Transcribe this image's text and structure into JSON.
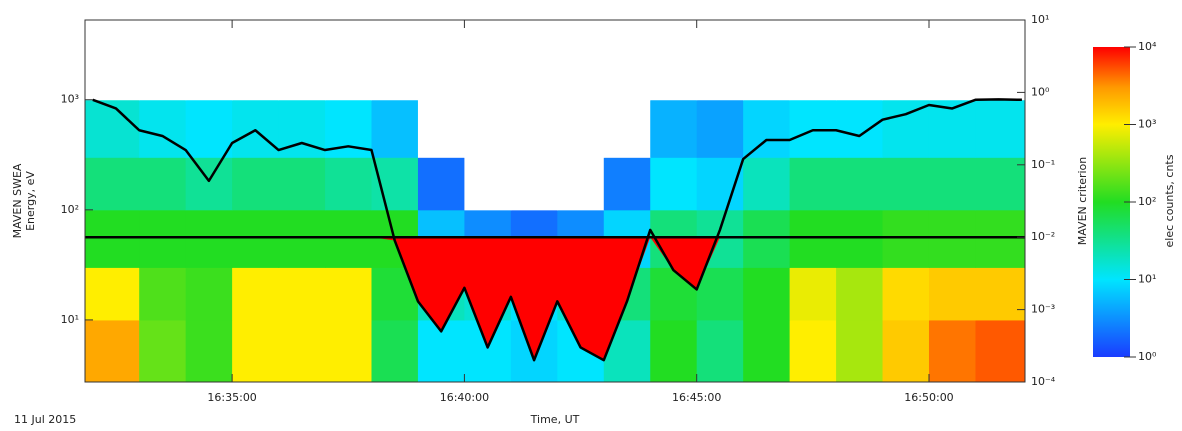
{
  "chart_data": {
    "type": "heatmap",
    "date": "11 Jul 2015",
    "xlabel": "Time, UT",
    "ylabel": [
      "MAVEN SWEA",
      "Energy, eV"
    ],
    "xlim": [
      "16:31:50",
      "16:52:04"
    ],
    "xticks": [
      "16:35:00",
      "16:40:00",
      "16:45:00",
      "16:50:00"
    ],
    "ylim": [
      2.73,
      5300
    ],
    "ylog": true,
    "yticks": [
      {
        "value": 10,
        "label": "10¹"
      },
      {
        "value": 100,
        "label": "10²"
      },
      {
        "value": 1000,
        "label": "10³"
      }
    ],
    "x_edges": [
      "16:31:50",
      "16:33:00",
      "16:34:00",
      "16:35:00",
      "16:36:00",
      "16:37:00",
      "16:38:00",
      "16:39:00",
      "16:40:00",
      "16:41:00",
      "16:42:00",
      "16:43:00",
      "16:44:00",
      "16:45:00",
      "16:46:00",
      "16:47:00",
      "16:48:00",
      "16:49:00",
      "16:50:00",
      "16:51:00",
      "16:52:04"
    ],
    "y_edges": [
      2.73,
      10,
      30,
      100,
      300,
      1000,
      5300
    ],
    "z": [
      [
        2500,
        200,
        130,
        1000,
        1000,
        1000,
        60,
        10,
        10,
        8,
        10,
        20,
        100,
        40,
        100,
        1000,
        400,
        1600,
        4000,
        5000
      ],
      [
        1000,
        160,
        130,
        1000,
        1000,
        1000,
        80,
        20,
        16,
        10,
        16,
        40,
        80,
        60,
        100,
        800,
        400,
        1300,
        1600,
        1600
      ],
      [
        100,
        100,
        100,
        100,
        100,
        100,
        100,
        6,
        3,
        2,
        3,
        8,
        40,
        30,
        60,
        100,
        100,
        120,
        120,
        120
      ],
      [
        40,
        40,
        30,
        40,
        40,
        30,
        25,
        2,
        0,
        0,
        0,
        2.5,
        10,
        8,
        20,
        40,
        40,
        40,
        40,
        40
      ],
      [
        16,
        12,
        10,
        12,
        12,
        10,
        6,
        0,
        0,
        0,
        0,
        0,
        5,
        4,
        8,
        10,
        10,
        12,
        12,
        12
      ],
      [
        0,
        0,
        0,
        0,
        0,
        0,
        0,
        0,
        0,
        0,
        0,
        0,
        0,
        0,
        0,
        0,
        0,
        0,
        0,
        0
      ]
    ],
    "colorbar": {
      "label": "elec counts, cnts",
      "lim": [
        1,
        10000
      ],
      "log": true,
      "ticks": [
        {
          "value": 1,
          "label": "10⁰"
        },
        {
          "value": 10,
          "label": "10¹"
        },
        {
          "value": 100,
          "label": "10²"
        },
        {
          "value": 1000,
          "label": "10³"
        },
        {
          "value": 10000,
          "label": "10⁴"
        }
      ]
    },
    "y2label": "MAVEN criterion",
    "y2lim": [
      0.0001,
      10
    ],
    "y2log": true,
    "y2ticks": [
      {
        "value": 0.0001,
        "label": "10⁻⁴"
      },
      {
        "value": 0.001,
        "label": "10⁻³"
      },
      {
        "value": 0.01,
        "label": "10⁻²"
      },
      {
        "value": 0.1,
        "label": "10⁻¹"
      },
      {
        "value": 1,
        "label": "10⁰"
      },
      {
        "value": 10,
        "label": "10¹"
      }
    ],
    "criterion": {
      "color": "#000000",
      "fill": "#ff0000",
      "threshold": 0.01,
      "x": [
        "16:32:00",
        "16:32:30",
        "16:33:00",
        "16:33:30",
        "16:34:00",
        "16:34:30",
        "16:35:00",
        "16:35:30",
        "16:36:00",
        "16:36:30",
        "16:37:00",
        "16:37:30",
        "16:38:00",
        "16:38:30",
        "16:39:00",
        "16:39:30",
        "16:40:00",
        "16:40:30",
        "16:41:00",
        "16:41:30",
        "16:42:00",
        "16:42:30",
        "16:43:00",
        "16:43:30",
        "16:44:00",
        "16:44:30",
        "16:45:00",
        "16:45:30",
        "16:46:00",
        "16:46:30",
        "16:47:00",
        "16:47:30",
        "16:48:00",
        "16:48:30",
        "16:49:00",
        "16:49:30",
        "16:50:00",
        "16:50:30",
        "16:51:00",
        "16:51:30",
        "16:52:00"
      ],
      "values": [
        0.79,
        0.6,
        0.3,
        0.25,
        0.16,
        0.06,
        0.2,
        0.3,
        0.16,
        0.2,
        0.16,
        0.18,
        0.16,
        0.009,
        0.0013,
        0.0005,
        0.002,
        0.0003,
        0.0015,
        0.0002,
        0.0013,
        0.0003,
        0.0002,
        0.0013,
        0.0126,
        0.0035,
        0.0019,
        0.0126,
        0.12,
        0.22,
        0.22,
        0.3,
        0.3,
        0.25,
        0.42,
        0.5,
        0.67,
        0.6,
        0.79,
        0.8,
        0.79
      ]
    }
  }
}
